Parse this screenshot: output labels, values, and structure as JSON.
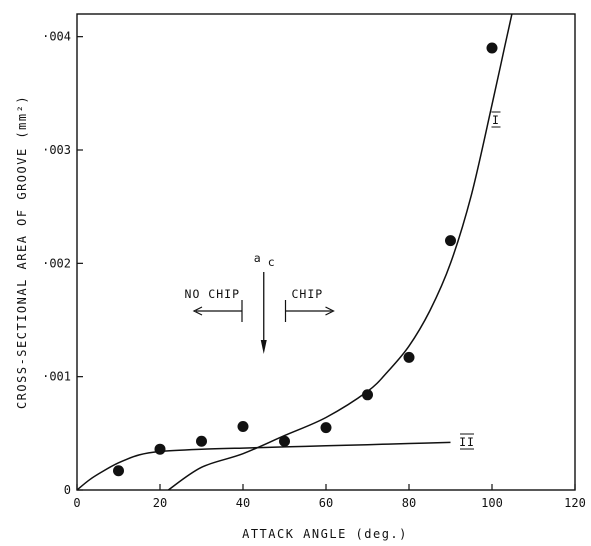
{
  "chart_data": {
    "type": "scatter",
    "xlabel": "ATTACK ANGLE (deg.)",
    "ylabel": "CROSS-SECTIONAL AREA OF GROOVE (mm²)",
    "xlim": [
      0,
      120
    ],
    "ylim": [
      0,
      0.0042
    ],
    "grid": false,
    "x_ticks": [
      0,
      20,
      40,
      60,
      80,
      100,
      120
    ],
    "x_tick_labels": [
      "0",
      "20",
      "40",
      "60",
      "80",
      "100",
      "120"
    ],
    "y_ticks": [
      0,
      0.001,
      0.002,
      0.003,
      0.004
    ],
    "y_tick_labels": [
      "0",
      "·001",
      "·002",
      "·003",
      "·004"
    ],
    "points": {
      "x": [
        10,
        20,
        30,
        40,
        50,
        60,
        70,
        80,
        90,
        100
      ],
      "y": [
        0.00017,
        0.00036,
        0.00043,
        0.00056,
        0.00043,
        0.00055,
        0.00084,
        0.00117,
        0.0022,
        0.0039
      ]
    },
    "curves": [
      {
        "name": "I",
        "x": [
          22,
          30,
          40,
          50,
          60,
          70,
          75,
          80,
          85,
          90,
          95,
          100,
          103,
          106
        ],
        "y": [
          0.0,
          0.0002,
          0.00032,
          0.00048,
          0.00064,
          0.00087,
          0.00105,
          0.00127,
          0.00158,
          0.002,
          0.0026,
          0.0034,
          0.0039,
          0.0044
        ]
      },
      {
        "name": "II",
        "x": [
          0,
          3,
          6,
          10,
          15,
          20,
          30,
          40,
          50,
          60,
          70,
          80,
          90
        ],
        "y": [
          0.0,
          9e-05,
          0.00016,
          0.00024,
          0.00031,
          0.00034,
          0.00036,
          0.00037,
          0.00038,
          0.00039,
          0.0004,
          0.00041,
          0.00042
        ]
      }
    ],
    "annotations": {
      "critical_label": "a",
      "critical_subscript": "c",
      "critical_x": 45,
      "no_chip_label": "NO CHIP",
      "chip_label": "CHIP",
      "curve1_label": "I",
      "curve2_label": "II"
    }
  }
}
